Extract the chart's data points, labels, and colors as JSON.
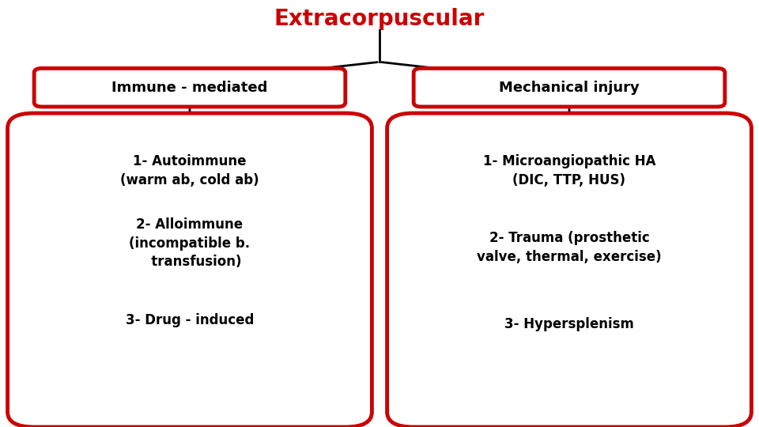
{
  "title": "Extracorpuscular",
  "title_color": "#cc0000",
  "title_fontsize": 20,
  "background_color": "#ffffff",
  "border_color": "#cc0000",
  "border_linewidth": 3.5,
  "arrow_color": "#000000",
  "left_header": "Immune - mediated",
  "right_header": "Mechanical injury",
  "left_items": [
    "1- Autoimmune\n(warm ab, cold ab)",
    "2- Alloimmune\n(incompatible b.\n   transfusion)",
    "3- Drug - induced"
  ],
  "right_items": [
    "1- Microangiopathic HA\n(DIC, TTP, HUS)",
    "2- Trauma (prosthetic\nvalve, thermal, exercise)",
    "3- Hypersplenism"
  ],
  "header_fontsize": 13,
  "item_fontsize": 12,
  "xlim": [
    0,
    10
  ],
  "ylim": [
    0,
    10
  ]
}
